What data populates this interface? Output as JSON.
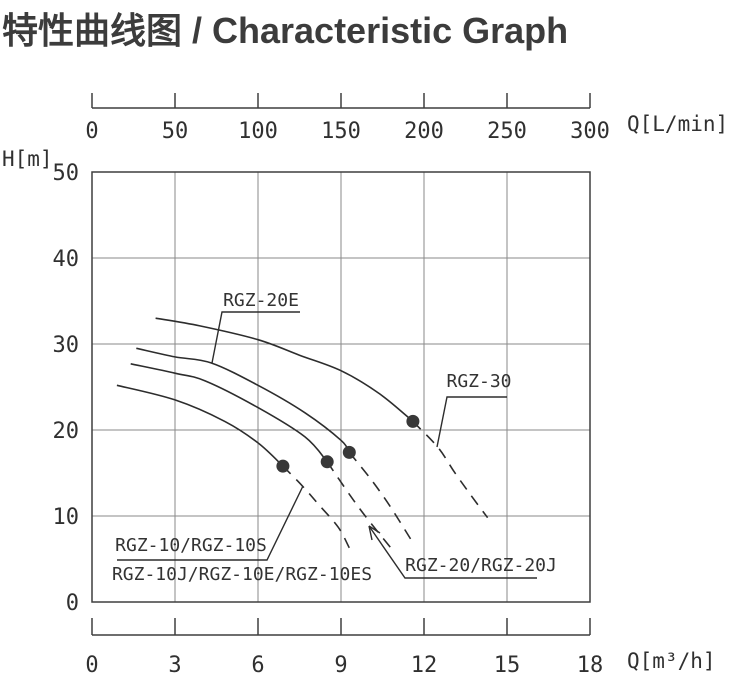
{
  "title": "特性曲线图 / Characteristic Graph",
  "labels": {
    "rgz20e": "RGZ-20E",
    "rgz30": "RGZ-30",
    "rgz10s": "RGZ-10/RGZ-10S",
    "rgz10j": "RGZ-10J/RGZ-10E/RGZ-10ES",
    "rgz20j": "RGZ-20/RGZ-20J"
  },
  "chart_data": {
    "type": "line",
    "title": "特性曲线图 / Characteristic Graph",
    "grid": true,
    "axes": {
      "top": {
        "label": "Q[L/min]",
        "ticks": [
          0,
          50,
          100,
          150,
          200,
          250,
          300
        ],
        "range": [
          0,
          300
        ]
      },
      "bottom": {
        "label": "Q[m³/h]",
        "ticks": [
          0,
          3,
          6,
          9,
          12,
          15,
          18
        ],
        "range": [
          0,
          18
        ]
      },
      "left": {
        "label": "H[m]",
        "ticks": [
          0,
          10,
          20,
          30,
          40,
          50
        ],
        "range": [
          0,
          50
        ]
      }
    },
    "series": [
      {
        "name": "RGZ-30",
        "solid": [
          [
            2.3,
            33.0
          ],
          [
            3.9,
            32.1
          ],
          [
            6.0,
            30.5
          ],
          [
            7.5,
            28.7
          ],
          [
            9.0,
            26.9
          ],
          [
            10.4,
            24.2
          ],
          [
            11.6,
            21.0
          ]
        ],
        "dashed": [
          [
            11.6,
            21.0
          ],
          [
            12.5,
            18.0
          ],
          [
            13.1,
            15.1
          ],
          [
            13.7,
            12.4
          ],
          [
            14.3,
            9.8
          ]
        ]
      },
      {
        "name": "RGZ-20E",
        "solid": [
          [
            1.6,
            29.5
          ],
          [
            3.0,
            28.5
          ],
          [
            4.3,
            27.8
          ],
          [
            6.0,
            25.2
          ],
          [
            7.7,
            22.0
          ],
          [
            9.0,
            18.8
          ],
          [
            9.3,
            17.4
          ]
        ],
        "dashed": [
          [
            9.3,
            17.4
          ],
          [
            10.1,
            14.2
          ],
          [
            10.8,
            11.0
          ],
          [
            11.6,
            6.9
          ]
        ]
      },
      {
        "name": "RGZ-20/RGZ-20J",
        "solid": [
          [
            1.4,
            27.7
          ],
          [
            3.0,
            26.6
          ],
          [
            4.1,
            25.7
          ],
          [
            6.0,
            22.6
          ],
          [
            7.7,
            19.2
          ],
          [
            8.5,
            16.3
          ]
        ],
        "dashed": [
          [
            8.5,
            16.3
          ],
          [
            9.2,
            13.0
          ],
          [
            9.9,
            9.9
          ],
          [
            10.8,
            6.3
          ]
        ]
      },
      {
        "name": "RGZ-10/RGZ-10S, RGZ-10J/RGZ-10E/RGZ-10ES",
        "solid": [
          [
            0.9,
            25.2
          ],
          [
            3.0,
            23.5
          ],
          [
            4.8,
            21.0
          ],
          [
            6.0,
            18.5
          ],
          [
            6.9,
            15.8
          ]
        ],
        "dashed": [
          [
            6.9,
            15.8
          ],
          [
            7.6,
            13.5
          ],
          [
            8.2,
            11.3
          ],
          [
            8.9,
            8.7
          ],
          [
            9.3,
            6.3
          ]
        ]
      }
    ],
    "operating_points": [
      {
        "series": "RGZ-10 group",
        "q": 6.9,
        "h": 15.8
      },
      {
        "series": "RGZ-20/RGZ-20J",
        "q": 8.5,
        "h": 16.3
      },
      {
        "series": "RGZ-20E",
        "q": 9.3,
        "h": 17.4
      },
      {
        "series": "RGZ-30",
        "q": 11.6,
        "h": 21.0
      }
    ]
  }
}
